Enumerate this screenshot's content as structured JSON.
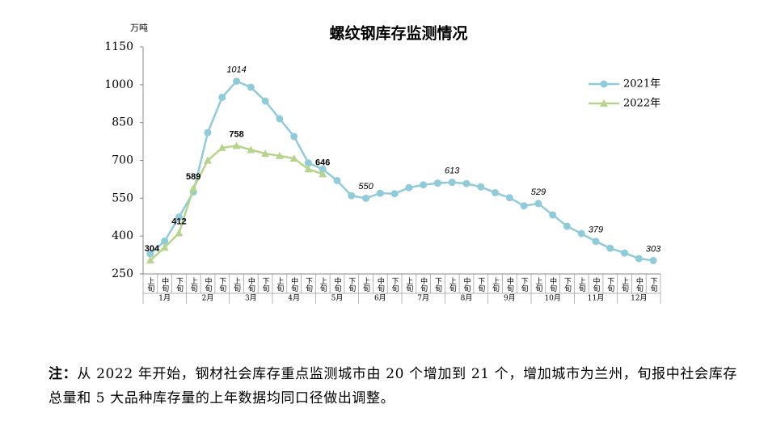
{
  "chart_data": {
    "type": "line",
    "title": "螺纹钢库存监测情况",
    "y_label": "万吨",
    "categories": [
      "上旬",
      "中旬",
      "下旬",
      "上旬",
      "中旬",
      "下旬",
      "上旬",
      "中旬",
      "下旬",
      "上旬",
      "中旬",
      "下旬",
      "上旬",
      "中旬",
      "下旬",
      "上旬",
      "中旬",
      "下旬",
      "上旬",
      "中旬",
      "下旬",
      "上旬",
      "中旬",
      "下旬",
      "上旬",
      "中旬",
      "下旬",
      "上旬",
      "中旬",
      "下旬",
      "上旬",
      "中旬",
      "下旬",
      "上旬",
      "中旬",
      "下旬"
    ],
    "groups": [
      "1月",
      "2月",
      "3月",
      "4月",
      "5月",
      "6月",
      "7月",
      "8月",
      "9月",
      "10月",
      "11月",
      "12月"
    ],
    "series": [
      {
        "name": "2021年",
        "color": "#8fcbd9",
        "marker": "circle",
        "label_style": "italic",
        "values": [
          330,
          380,
          475,
          575,
          810,
          950,
          1014,
          990,
          935,
          865,
          795,
          690,
          665,
          620,
          560,
          550,
          570,
          568,
          592,
          603,
          610,
          613,
          608,
          595,
          572,
          552,
          520,
          529,
          484,
          439,
          410,
          379,
          352,
          333,
          311,
          303
        ],
        "value_labels": [
          null,
          null,
          null,
          null,
          null,
          null,
          "1014",
          null,
          null,
          null,
          null,
          null,
          null,
          null,
          null,
          "550",
          null,
          null,
          null,
          null,
          null,
          "613",
          null,
          null,
          null,
          null,
          null,
          "529",
          null,
          null,
          null,
          "379",
          null,
          null,
          null,
          "303"
        ]
      },
      {
        "name": "2022年",
        "color": "#b6d48c",
        "marker": "triangle",
        "label_style": "bold",
        "values": [
          304,
          355,
          412,
          589,
          700,
          750,
          758,
          742,
          727,
          718,
          708,
          665,
          646,
          null,
          null,
          null,
          null,
          null,
          null,
          null,
          null,
          null,
          null,
          null,
          null,
          null,
          null,
          null,
          null,
          null,
          null,
          null,
          null,
          null,
          null,
          null
        ],
        "value_labels": [
          "304",
          null,
          "412",
          "589",
          null,
          null,
          "758",
          null,
          null,
          null,
          null,
          null,
          "646",
          null,
          null,
          null,
          null,
          null,
          null,
          null,
          null,
          null,
          null,
          null,
          null,
          null,
          null,
          null,
          null,
          null,
          null,
          null,
          null,
          null,
          null,
          null
        ]
      }
    ],
    "ylim": [
      250,
      1150
    ],
    "yticks": [
      250,
      400,
      550,
      700,
      850,
      1000,
      1150
    ],
    "legend": "upper right"
  },
  "note_label": "注：",
  "note": "从 2022 年开始，钢材社会库存重点监测城市由 20 个增加到 21 个，增加城市为兰州，旬报中社会库存总量和 5 大品种库存量的上年数据均同口径做出调整。"
}
